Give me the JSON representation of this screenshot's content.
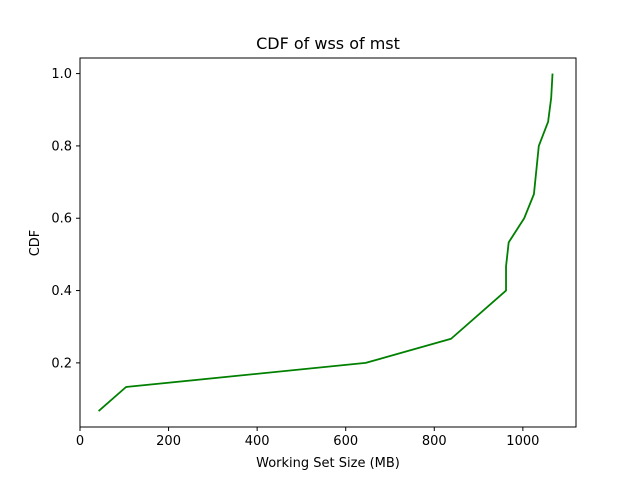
{
  "chart_data": {
    "type": "line",
    "title": "CDF of wss of mst",
    "xlabel": "Working Set Size (MB)",
    "ylabel": "CDF",
    "xlim": [
      0,
      1120
    ],
    "ylim": [
      0.0227,
      1.0431
    ],
    "xticks": [
      0,
      200,
      400,
      600,
      800,
      1000
    ],
    "yticks": [
      0.2,
      0.4,
      0.6,
      0.8,
      1.0
    ],
    "xtick_labels": [
      "0",
      "200",
      "400",
      "600",
      "800",
      "1000"
    ],
    "ytick_labels": [
      "0.2",
      "0.4",
      "0.6",
      "0.8",
      "1.0"
    ],
    "grid": false,
    "series": [
      {
        "color": "#008000",
        "x": [
          42,
          104,
          645,
          838,
          962,
          962,
          968,
          1003,
          1025,
          1036,
          1057,
          1064,
          1067
        ],
        "y": [
          0.0667,
          0.1333,
          0.2,
          0.2667,
          0.4,
          0.4667,
          0.5333,
          0.6,
          0.6667,
          0.8,
          0.8667,
          0.9333,
          1.0
        ]
      }
    ]
  }
}
